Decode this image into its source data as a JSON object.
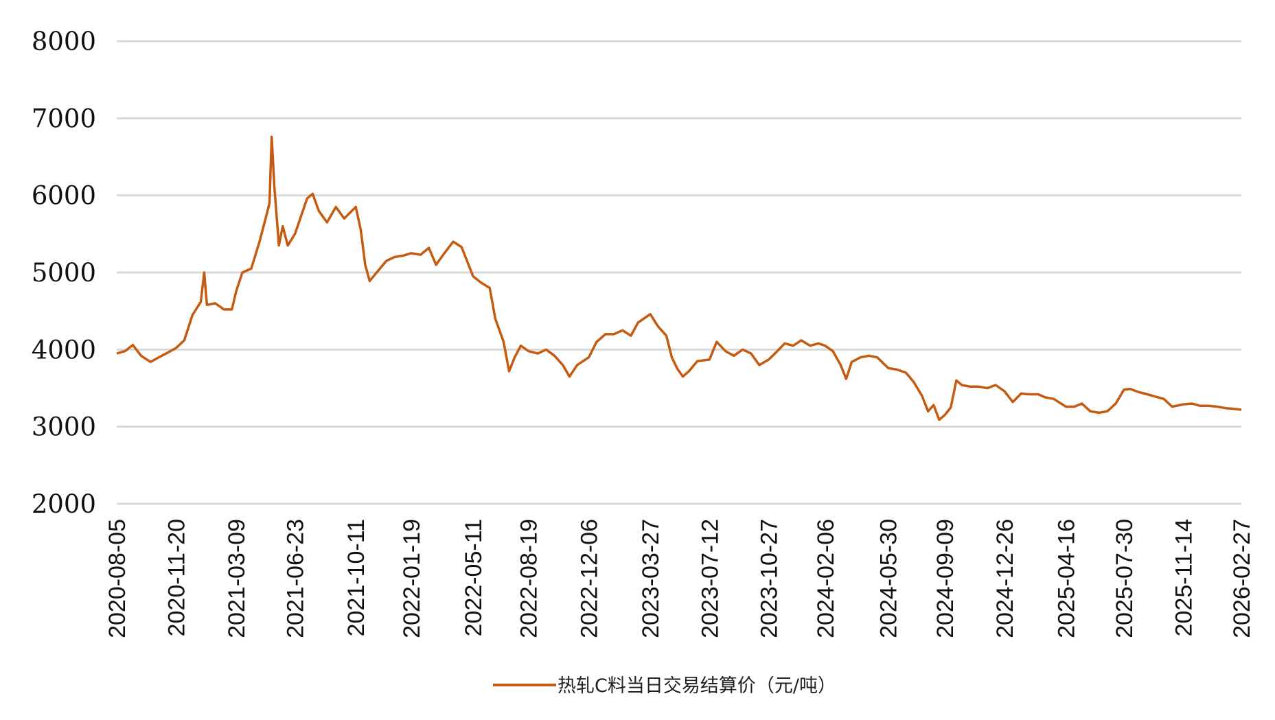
{
  "chart_data": {
    "type": "line",
    "title": "",
    "xlabel": "",
    "ylabel": "",
    "ylim": [
      2000,
      8000
    ],
    "yticks": [
      "2000",
      "3000",
      "4000",
      "5000",
      "6000",
      "7000",
      "8000"
    ],
    "grid": "horizontal",
    "legend_position": "bottom",
    "x_tick_labels": [
      "2020-08-05",
      "2020-11-20",
      "2021-03-09",
      "2021-06-23",
      "2021-10-11",
      "2022-01-19",
      "2022-05-11",
      "2022-08-19",
      "2022-12-06",
      "2023-03-27",
      "2023-07-12",
      "2023-10-27",
      "2024-02-06",
      "2024-05-30",
      "2024-09-09",
      "2024-12-26",
      "2025-04-16",
      "2025-07-30",
      "2025-11-14",
      "2026-02-27"
    ],
    "series": [
      {
        "name": "热轧C料当日交易结算价（元/吨）",
        "color": "#C55A11",
        "points": [
          [
            "2020-08-05",
            3950
          ],
          [
            "2020-08-20",
            3980
          ],
          [
            "2020-09-03",
            4060
          ],
          [
            "2020-09-18",
            3920
          ],
          [
            "2020-10-05",
            3840
          ],
          [
            "2020-10-20",
            3900
          ],
          [
            "2020-11-05",
            3960
          ],
          [
            "2020-11-20",
            4020
          ],
          [
            "2020-12-05",
            4120
          ],
          [
            "2020-12-20",
            4450
          ],
          [
            "2021-01-04",
            4620
          ],
          [
            "2021-01-10",
            5000
          ],
          [
            "2021-01-15",
            4580
          ],
          [
            "2021-01-30",
            4600
          ],
          [
            "2021-02-15",
            4520
          ],
          [
            "2021-03-01",
            4520
          ],
          [
            "2021-03-09",
            4760
          ],
          [
            "2021-03-20",
            5000
          ],
          [
            "2021-04-05",
            5050
          ],
          [
            "2021-04-20",
            5400
          ],
          [
            "2021-05-01",
            5700
          ],
          [
            "2021-05-08",
            5900
          ],
          [
            "2021-05-12",
            6760
          ],
          [
            "2021-05-17",
            6100
          ],
          [
            "2021-05-25",
            5350
          ],
          [
            "2021-06-01",
            5600
          ],
          [
            "2021-06-10",
            5350
          ],
          [
            "2021-06-23",
            5500
          ],
          [
            "2021-07-05",
            5750
          ],
          [
            "2021-07-15",
            5960
          ],
          [
            "2021-07-25",
            6020
          ],
          [
            "2021-08-05",
            5800
          ],
          [
            "2021-08-20",
            5650
          ],
          [
            "2021-09-05",
            5850
          ],
          [
            "2021-09-20",
            5700
          ],
          [
            "2021-10-11",
            5850
          ],
          [
            "2021-10-20",
            5550
          ],
          [
            "2021-10-28",
            5100
          ],
          [
            "2021-11-05",
            4890
          ],
          [
            "2021-11-20",
            5020
          ],
          [
            "2021-12-05",
            5150
          ],
          [
            "2021-12-20",
            5200
          ],
          [
            "2022-01-05",
            5220
          ],
          [
            "2022-01-19",
            5250
          ],
          [
            "2022-02-05",
            5230
          ],
          [
            "2022-02-20",
            5320
          ],
          [
            "2022-03-05",
            5100
          ],
          [
            "2022-03-20",
            5250
          ],
          [
            "2022-04-05",
            5400
          ],
          [
            "2022-04-20",
            5330
          ],
          [
            "2022-05-11",
            4950
          ],
          [
            "2022-05-25",
            4870
          ],
          [
            "2022-06-10",
            4800
          ],
          [
            "2022-06-20",
            4400
          ],
          [
            "2022-07-05",
            4100
          ],
          [
            "2022-07-15",
            3720
          ],
          [
            "2022-07-25",
            3900
          ],
          [
            "2022-08-05",
            4050
          ],
          [
            "2022-08-19",
            3980
          ],
          [
            "2022-09-05",
            3950
          ],
          [
            "2022-09-20",
            4000
          ],
          [
            "2022-10-05",
            3920
          ],
          [
            "2022-10-20",
            3800
          ],
          [
            "2022-11-01",
            3650
          ],
          [
            "2022-11-15",
            3800
          ],
          [
            "2022-12-06",
            3900
          ],
          [
            "2022-12-20",
            4100
          ],
          [
            "2023-01-05",
            4200
          ],
          [
            "2023-01-20",
            4200
          ],
          [
            "2023-02-05",
            4250
          ],
          [
            "2023-02-20",
            4180
          ],
          [
            "2023-03-05",
            4350
          ],
          [
            "2023-03-27",
            4460
          ],
          [
            "2023-04-10",
            4300
          ],
          [
            "2023-04-25",
            4180
          ],
          [
            "2023-05-05",
            3900
          ],
          [
            "2023-05-15",
            3750
          ],
          [
            "2023-05-25",
            3650
          ],
          [
            "2023-06-05",
            3720
          ],
          [
            "2023-06-20",
            3850
          ],
          [
            "2023-07-12",
            3870
          ],
          [
            "2023-07-25",
            4100
          ],
          [
            "2023-08-10",
            3980
          ],
          [
            "2023-08-25",
            3920
          ],
          [
            "2023-09-10",
            4000
          ],
          [
            "2023-09-25",
            3950
          ],
          [
            "2023-10-10",
            3800
          ],
          [
            "2023-10-27",
            3870
          ],
          [
            "2023-11-10",
            3970
          ],
          [
            "2023-11-25",
            4080
          ],
          [
            "2023-12-10",
            4050
          ],
          [
            "2023-12-25",
            4120
          ],
          [
            "2024-01-10",
            4050
          ],
          [
            "2024-01-25",
            4080
          ],
          [
            "2024-02-06",
            4050
          ],
          [
            "2024-02-20",
            3980
          ],
          [
            "2024-03-05",
            3800
          ],
          [
            "2024-03-15",
            3620
          ],
          [
            "2024-03-25",
            3840
          ],
          [
            "2024-04-10",
            3900
          ],
          [
            "2024-04-25",
            3920
          ],
          [
            "2024-05-10",
            3900
          ],
          [
            "2024-05-30",
            3760
          ],
          [
            "2024-06-15",
            3740
          ],
          [
            "2024-07-01",
            3700
          ],
          [
            "2024-07-15",
            3580
          ],
          [
            "2024-07-30",
            3400
          ],
          [
            "2024-08-10",
            3200
          ],
          [
            "2024-08-20",
            3280
          ],
          [
            "2024-08-30",
            3090
          ],
          [
            "2024-09-09",
            3150
          ],
          [
            "2024-09-20",
            3250
          ],
          [
            "2024-09-30",
            3600
          ],
          [
            "2024-10-10",
            3540
          ],
          [
            "2024-10-25",
            3520
          ],
          [
            "2024-11-10",
            3520
          ],
          [
            "2024-11-25",
            3500
          ],
          [
            "2024-12-10",
            3540
          ],
          [
            "2024-12-26",
            3460
          ],
          [
            "2025-01-10",
            3320
          ],
          [
            "2025-01-25",
            3430
          ],
          [
            "2025-02-10",
            3420
          ],
          [
            "2025-02-25",
            3420
          ],
          [
            "2025-03-10",
            3380
          ],
          [
            "2025-03-25",
            3360
          ],
          [
            "2025-04-16",
            3260
          ],
          [
            "2025-05-01",
            3260
          ],
          [
            "2025-05-15",
            3300
          ],
          [
            "2025-05-30",
            3200
          ],
          [
            "2025-06-15",
            3180
          ],
          [
            "2025-06-30",
            3200
          ],
          [
            "2025-07-15",
            3300
          ],
          [
            "2025-07-30",
            3480
          ],
          [
            "2025-08-10",
            3490
          ],
          [
            "2025-08-25",
            3450
          ],
          [
            "2025-09-10",
            3420
          ],
          [
            "2025-09-25",
            3390
          ],
          [
            "2025-10-10",
            3360
          ],
          [
            "2025-10-25",
            3260
          ],
          [
            "2025-11-14",
            3290
          ],
          [
            "2025-11-30",
            3300
          ],
          [
            "2025-12-15",
            3270
          ],
          [
            "2025-12-30",
            3270
          ],
          [
            "2026-01-15",
            3260
          ],
          [
            "2026-01-30",
            3240
          ],
          [
            "2026-02-15",
            3230
          ],
          [
            "2026-02-27",
            3220
          ]
        ]
      }
    ]
  }
}
